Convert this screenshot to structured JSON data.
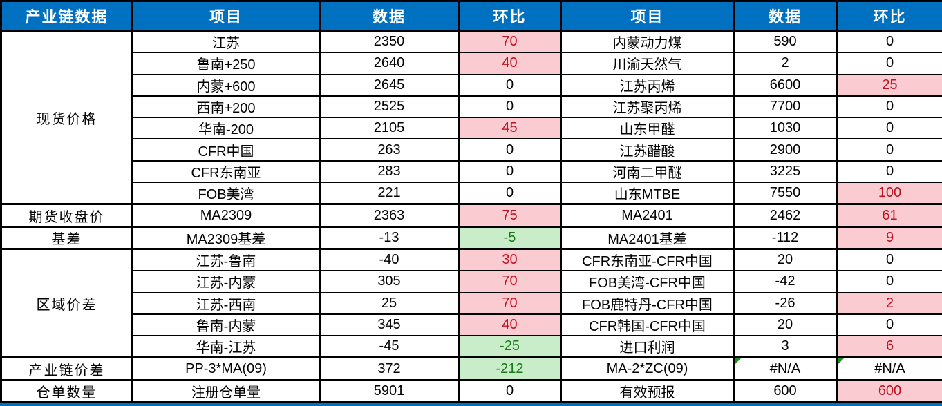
{
  "table": {
    "header": [
      "产业链数据",
      "项目",
      "数据",
      "环比",
      "项目",
      "数据",
      "环比"
    ],
    "rows": [
      {
        "section": "现货价格",
        "section_rows": 8,
        "item": "江苏",
        "value": "2350",
        "chg": "70",
        "chg_state": "up",
        "item2": "内蒙动力煤",
        "value2": "590",
        "chg2": "0",
        "chg2_state": "flat"
      },
      {
        "item": "鲁南+250",
        "value": "2640",
        "chg": "40",
        "chg_state": "up",
        "item2": "川渝天然气",
        "value2": "2",
        "chg2": "0",
        "chg2_state": "flat"
      },
      {
        "item": "内蒙+600",
        "value": "2645",
        "chg": "0",
        "chg_state": "flat",
        "item2": "江苏丙烯",
        "value2": "6600",
        "chg2": "25",
        "chg2_state": "up"
      },
      {
        "item": "西南+200",
        "value": "2525",
        "chg": "0",
        "chg_state": "flat",
        "item2": "江苏聚丙烯",
        "value2": "7700",
        "chg2": "0",
        "chg2_state": "flat"
      },
      {
        "item": "华南-200",
        "value": "2105",
        "chg": "45",
        "chg_state": "up",
        "item2": "山东甲醛",
        "value2": "1030",
        "chg2": "0",
        "chg2_state": "flat"
      },
      {
        "item": "CFR中国",
        "value": "263",
        "chg": "0",
        "chg_state": "flat",
        "item2": "江苏醋酸",
        "value2": "2900",
        "chg2": "0",
        "chg2_state": "flat"
      },
      {
        "item": "CFR东南亚",
        "value": "283",
        "chg": "0",
        "chg_state": "flat",
        "item2": "河南二甲醚",
        "value2": "3225",
        "chg2": "0",
        "chg2_state": "flat"
      },
      {
        "item": "FOB美湾",
        "value": "221",
        "chg": "0",
        "chg_state": "flat",
        "item2": "山东MTBE",
        "value2": "7550",
        "chg2": "100",
        "chg2_state": "up"
      },
      {
        "section": "期货收盘价",
        "section_rows": 1,
        "item": "MA2309",
        "value": "2363",
        "chg": "75",
        "chg_state": "up",
        "item2": "MA2401",
        "value2": "2462",
        "chg2": "61",
        "chg2_state": "up"
      },
      {
        "section": "基差",
        "section_rows": 1,
        "item": "MA2309基差",
        "value": "-13",
        "chg": "-5",
        "chg_state": "down",
        "item2": "MA2401基差",
        "value2": "-112",
        "chg2": "9",
        "chg2_state": "up"
      },
      {
        "section": "区域价差",
        "section_rows": 5,
        "item": "江苏-鲁南",
        "value": "-40",
        "chg": "30",
        "chg_state": "up",
        "item2": "CFR东南亚-CFR中国",
        "value2": "20",
        "chg2": "0",
        "chg2_state": "flat"
      },
      {
        "item": "江苏-内蒙",
        "value": "305",
        "chg": "70",
        "chg_state": "up",
        "item2": "FOB美湾-CFR中国",
        "value2": "-42",
        "chg2": "0",
        "chg2_state": "flat"
      },
      {
        "item": "江苏-西南",
        "value": "25",
        "chg": "70",
        "chg_state": "up",
        "item2": "FOB鹿特丹-CFR中国",
        "value2": "-26",
        "chg2": "2",
        "chg2_state": "up"
      },
      {
        "item": "鲁南-内蒙",
        "value": "345",
        "chg": "40",
        "chg_state": "up",
        "item2": "CFR韩国-CFR中国",
        "value2": "20",
        "chg2": "0",
        "chg2_state": "flat"
      },
      {
        "item": "华南-江苏",
        "value": "-45",
        "chg": "-25",
        "chg_state": "down",
        "item2": "进口利润",
        "value2": "3",
        "chg2": "6",
        "chg2_state": "up"
      },
      {
        "section": "产业链价差",
        "section_rows": 1,
        "item": "PP-3*MA(09)",
        "value": "372",
        "chg": "-212",
        "chg_state": "down",
        "item2": "MA-2*ZC(09)",
        "value2": "#N/A",
        "value2_corner": true,
        "chg2": "#N/A",
        "chg2_state": "flat",
        "chg2_corner": true
      },
      {
        "section": "仓单数量",
        "section_rows": 1,
        "item": "注册仓单量",
        "value": "5901",
        "chg": "0",
        "chg_state": "flat",
        "item2": "有效预报",
        "value2": "600",
        "chg2": "600",
        "chg2_state": "up"
      }
    ]
  },
  "colors": {
    "header_bg": "#0070C0",
    "header_text": "#FFFFFF",
    "increase_bg": "#FACBD1",
    "increase_text": "#BE1220",
    "decrease_bg": "#C9ECC9",
    "decrease_text": "#177A17",
    "border": "#000000",
    "error_flag": "#1E8F1E",
    "bottom_strip": "#0070C0"
  },
  "chart_data": {
    "type": "table",
    "title": "产业链数据",
    "columns": [
      "产业链数据",
      "项目",
      "数据",
      "环比",
      "项目",
      "数据",
      "环比"
    ],
    "rows": [
      [
        "现货价格",
        "江苏",
        "2350",
        "70",
        "内蒙动力煤",
        "590",
        "0"
      ],
      [
        "现货价格",
        "鲁南+250",
        "2640",
        "40",
        "川渝天然气",
        "2",
        "0"
      ],
      [
        "现货价格",
        "内蒙+600",
        "2645",
        "0",
        "江苏丙烯",
        "6600",
        "25"
      ],
      [
        "现货价格",
        "西南+200",
        "2525",
        "0",
        "江苏聚丙烯",
        "7700",
        "0"
      ],
      [
        "现货价格",
        "华南-200",
        "2105",
        "45",
        "山东甲醛",
        "1030",
        "0"
      ],
      [
        "现货价格",
        "CFR中国",
        "263",
        "0",
        "江苏醋酸",
        "2900",
        "0"
      ],
      [
        "现货价格",
        "CFR东南亚",
        "283",
        "0",
        "河南二甲醚",
        "3225",
        "0"
      ],
      [
        "现货价格",
        "FOB美湾",
        "221",
        "0",
        "山东MTBE",
        "7550",
        "100"
      ],
      [
        "期货收盘价",
        "MA2309",
        "2363",
        "75",
        "MA2401",
        "2462",
        "61"
      ],
      [
        "基差",
        "MA2309基差",
        "-13",
        "-5",
        "MA2401基差",
        "-112",
        "9"
      ],
      [
        "区域价差",
        "江苏-鲁南",
        "-40",
        "30",
        "CFR东南亚-CFR中国",
        "20",
        "0"
      ],
      [
        "区域价差",
        "江苏-内蒙",
        "305",
        "70",
        "FOB美湾-CFR中国",
        "-42",
        "0"
      ],
      [
        "区域价差",
        "江苏-西南",
        "25",
        "70",
        "FOB鹿特丹-CFR中国",
        "-26",
        "2"
      ],
      [
        "区域价差",
        "鲁南-内蒙",
        "345",
        "40",
        "CFR韩国-CFR中国",
        "20",
        "0"
      ],
      [
        "区域价差",
        "华南-江苏",
        "-45",
        "-25",
        "进口利润",
        "3",
        "6"
      ],
      [
        "产业链价差",
        "PP-3*MA(09)",
        "372",
        "-212",
        "MA-2*ZC(09)",
        "#N/A",
        "#N/A"
      ],
      [
        "仓单数量",
        "注册仓单量",
        "5901",
        "0",
        "有效预报",
        "600",
        "600"
      ]
    ],
    "cell_highlight_legend": "环比 cells: pink bg + dark-red text = increase; green bg + dark-green text = decrease; white = no change; #N/A cells carry green error-flag corner triangles"
  }
}
